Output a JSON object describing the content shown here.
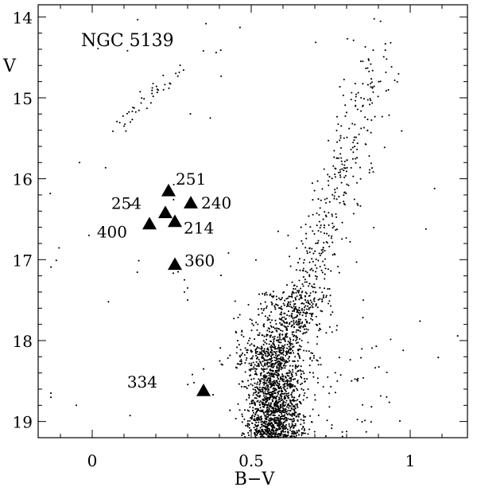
{
  "chart_data": {
    "type": "scatter",
    "title": "NGC 5139",
    "xlabel": "B−V",
    "ylabel": "V",
    "xlim": [
      -0.17,
      1.18
    ],
    "ylim": [
      19.2,
      13.85
    ],
    "y_inverted": true,
    "grid": false,
    "x_ticks": [
      0,
      0.5,
      1
    ],
    "x_tick_labels": [
      "0",
      "0.5",
      "1"
    ],
    "y_ticks": [
      14,
      15,
      16,
      17,
      18,
      19
    ],
    "y_tick_labels": [
      "14",
      "15",
      "16",
      "17",
      "18",
      "19"
    ],
    "field_stars": {
      "marker": "dot",
      "color": "#000000",
      "generated_count": 2400,
      "regions": [
        {
          "region": "horizontal branch",
          "B_V": [
            0.06,
            0.28
          ],
          "V": [
            14.62,
            15.42
          ]
        },
        {
          "region": "blue horizontal branch tail",
          "B_V": [
            -0.12,
            0.32
          ],
          "V": [
            15.8,
            18.9
          ]
        },
        {
          "region": "red giant branch",
          "B_V": [
            0.58,
            0.93
          ],
          "V": [
            13.95,
            17.9
          ]
        },
        {
          "region": "subgiant branch / turnoff",
          "B_V": [
            0.45,
            0.8
          ],
          "V": [
            17.4,
            18.3
          ]
        },
        {
          "region": "main sequence",
          "B_V": [
            0.45,
            0.75
          ],
          "V": [
            18.0,
            19.2
          ]
        },
        {
          "region": "field contaminants",
          "B_V": [
            -0.15,
            1.15
          ],
          "V": [
            14.0,
            19.2
          ]
        }
      ]
    },
    "highlighted_stars": [
      {
        "id": "251",
        "B_V": 0.24,
        "V": 16.15
      },
      {
        "id": "240",
        "B_V": 0.31,
        "V": 16.3
      },
      {
        "id": "254",
        "B_V": 0.23,
        "V": 16.42
      },
      {
        "id": "214",
        "B_V": 0.26,
        "V": 16.53
      },
      {
        "id": "400",
        "B_V": 0.18,
        "V": 16.56
      },
      {
        "id": "360",
        "B_V": 0.26,
        "V": 17.06
      },
      {
        "id": "334",
        "B_V": 0.35,
        "V": 18.62
      }
    ]
  }
}
